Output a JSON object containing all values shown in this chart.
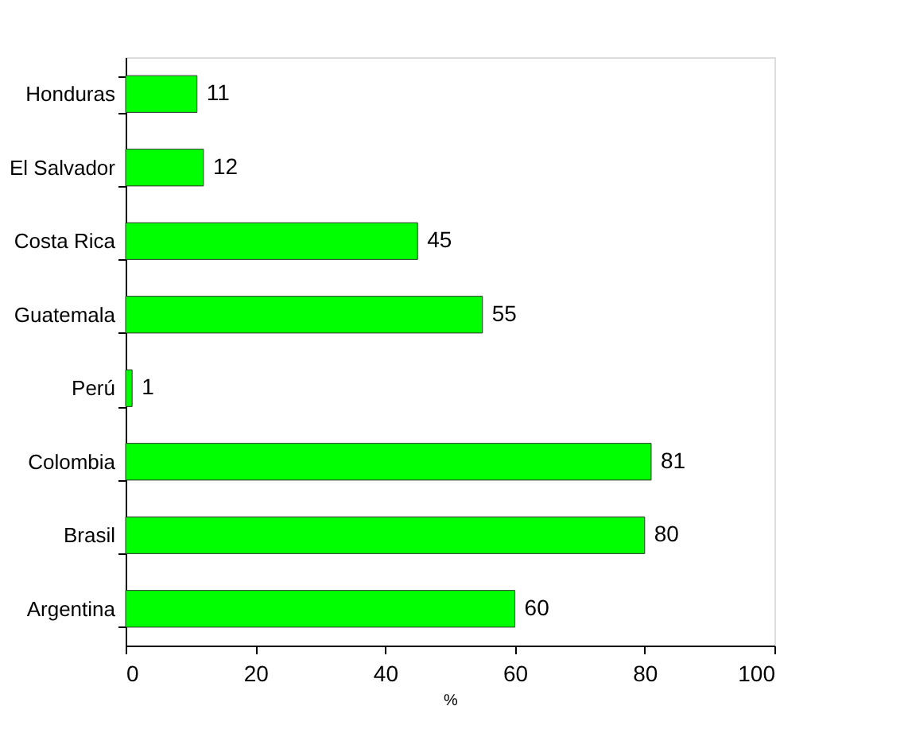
{
  "chart_data": {
    "type": "bar",
    "orientation": "horizontal",
    "xlabel": "%",
    "categories": [
      "Honduras",
      "El Salvador",
      "Costa Rica",
      "Guatemala",
      "Perú",
      "Colombia",
      "Brasil",
      "Argentina"
    ],
    "values": [
      11,
      12,
      45,
      55,
      1,
      81,
      80,
      60
    ],
    "color": "#00ff00",
    "xlim": [
      0,
      100
    ],
    "xticks": [
      0,
      20,
      40,
      60,
      80,
      100
    ],
    "data_labels": true,
    "grid": false
  }
}
